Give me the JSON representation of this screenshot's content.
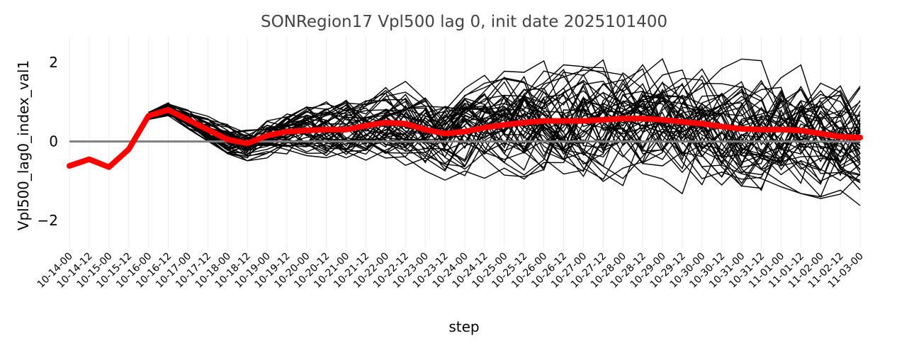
{
  "chart_data": {
    "type": "line",
    "title": "SONRegion17 Vpl500 lag 0, init date 2025101400",
    "xlabel": "step",
    "ylabel": "Vpl500_lag0_index_val1",
    "categories": [
      "10-14-00",
      "10-14-12",
      "10-15-00",
      "10-15-12",
      "10-16-00",
      "10-16-12",
      "10-17-00",
      "10-17-12",
      "10-18-00",
      "10-18-12",
      "10-19-00",
      "10-19-12",
      "10-20-00",
      "10-20-12",
      "10-21-00",
      "10-21-12",
      "10-22-00",
      "10-22-12",
      "10-23-00",
      "10-23-12",
      "10-24-00",
      "10-24-12",
      "10-25-00",
      "10-25-12",
      "10-26-00",
      "10-26-12",
      "10-27-00",
      "10-27-12",
      "10-28-00",
      "10-28-12",
      "10-29-00",
      "10-29-12",
      "10-30-00",
      "10-30-12",
      "10-31-00",
      "10-31-12",
      "11-01-00",
      "11-01-12",
      "11-02-00",
      "11-02-12",
      "11-03-00"
    ],
    "ylim": [
      -2.7,
      2.65
    ],
    "yticks": [
      -2,
      0,
      2
    ],
    "grid": true,
    "reference_line": {
      "y": 0,
      "color": "#808080"
    },
    "mean_series": {
      "color": "#ff0000",
      "values": [
        -0.62,
        -0.45,
        -0.65,
        -0.2,
        0.65,
        0.8,
        0.55,
        0.3,
        0.05,
        -0.05,
        0.15,
        0.25,
        0.28,
        0.3,
        0.3,
        0.4,
        0.48,
        0.45,
        0.3,
        0.2,
        0.25,
        0.35,
        0.42,
        0.48,
        0.52,
        0.52,
        0.52,
        0.55,
        0.58,
        0.58,
        0.55,
        0.5,
        0.45,
        0.38,
        0.32,
        0.3,
        0.3,
        0.28,
        0.2,
        0.12,
        0.1
      ]
    },
    "ensemble": {
      "color": "#000000",
      "members": 50,
      "start_index": 4
    }
  }
}
